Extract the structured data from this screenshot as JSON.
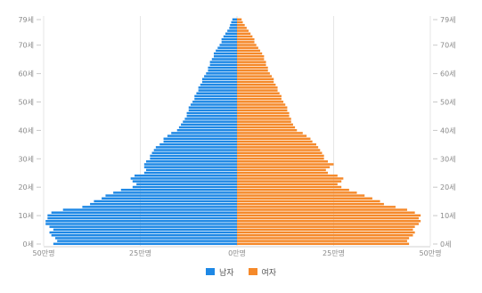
{
  "chart_data": {
    "type": "bar",
    "orientation": "horizontal-pyramid",
    "x_unit": "만명",
    "y_ticks": [
      "0세",
      "10세",
      "20세",
      "30세",
      "40세",
      "50세",
      "60세",
      "70세",
      "79세"
    ],
    "x_ticks": [
      "50만명",
      "25만명",
      "0만명",
      "25만명",
      "50만명"
    ],
    "xlim": [
      -50,
      50
    ],
    "ages": [
      0,
      1,
      2,
      3,
      4,
      5,
      6,
      7,
      8,
      9,
      10,
      11,
      12,
      13,
      14,
      15,
      16,
      17,
      18,
      19,
      20,
      21,
      22,
      23,
      24,
      25,
      26,
      27,
      28,
      29,
      30,
      31,
      32,
      33,
      34,
      35,
      36,
      37,
      38,
      39,
      40,
      41,
      42,
      43,
      44,
      45,
      46,
      47,
      48,
      49,
      50,
      51,
      52,
      53,
      54,
      55,
      56,
      57,
      58,
      59,
      60,
      61,
      62,
      63,
      64,
      65,
      66,
      67,
      68,
      69,
      70,
      71,
      72,
      73,
      74,
      75,
      76,
      77,
      78,
      79
    ],
    "series": [
      {
        "name": "남자",
        "color": "#1e88e5",
        "values": [
          47.5,
          46.5,
          47,
          48,
          48.5,
          47.5,
          48.5,
          49.5,
          49.5,
          49,
          49,
          48,
          45,
          40,
          38,
          37,
          35,
          34,
          32,
          30,
          27,
          26,
          27,
          27.5,
          26.5,
          24,
          23.5,
          24,
          24,
          23.5,
          22.5,
          22.5,
          22,
          21.5,
          21,
          20,
          19,
          19,
          18,
          17,
          15.5,
          15,
          14.5,
          14,
          13.5,
          13,
          13,
          12.5,
          12.5,
          12,
          11.5,
          11,
          11,
          10.5,
          10,
          10,
          9.5,
          9,
          9,
          8.5,
          8,
          7.5,
          7.5,
          7,
          7,
          6.5,
          6,
          6,
          5.5,
          5,
          4.5,
          4,
          4,
          3.5,
          3,
          2.5,
          2,
          1.8,
          1.5,
          1.2
        ]
      },
      {
        "name": "여자",
        "color": "#f5892a",
        "values": [
          44.5,
          44,
          44.5,
          45.5,
          46,
          45.5,
          46,
          47,
          47.5,
          47,
          47.5,
          46,
          44,
          41,
          38,
          37,
          35,
          33,
          31,
          29,
          27,
          26,
          27,
          27.5,
          26,
          23.5,
          23,
          24,
          25,
          23.5,
          22.5,
          22.5,
          22,
          21.5,
          21,
          20.5,
          19.5,
          19,
          18,
          17,
          15.5,
          15,
          14.5,
          14,
          14,
          13.5,
          13.5,
          13,
          13,
          12.5,
          12,
          11.5,
          11.5,
          11,
          10.5,
          10.5,
          10,
          9.5,
          9.5,
          9,
          8.5,
          8,
          8,
          7.5,
          7.5,
          7,
          7,
          6.5,
          6,
          5.5,
          5,
          4.5,
          4.5,
          4,
          3.5,
          3,
          2.5,
          2,
          1.5,
          1.2
        ]
      }
    ],
    "grid": true,
    "legend_position": "bottom-center"
  }
}
